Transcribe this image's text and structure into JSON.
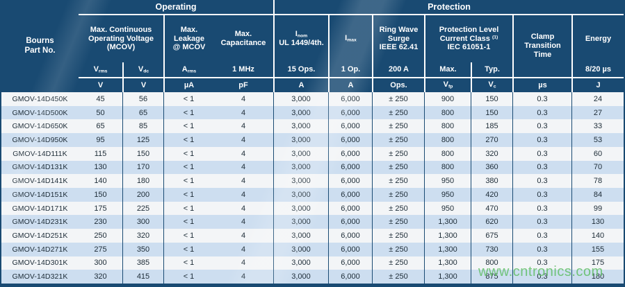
{
  "colors": {
    "header_bg": "#194a72",
    "row_stripe": "#cddef0",
    "row_plain": "#f3f5f7",
    "data_text": "#1c2b36",
    "watermark_green": "#60be66"
  },
  "header": {
    "part": {
      "l1": "Bourns",
      "l2": "Part No."
    },
    "sections": {
      "operating": "Operating",
      "protection": "Protection"
    },
    "groups": {
      "mcov": {
        "l1": "Max. Continuous",
        "l2": "Operating Voltage",
        "l3": "(MCOV)"
      },
      "leakage": {
        "l1": "Max.",
        "l2": "Leakage",
        "l3": "@ MCOV"
      },
      "capacitance": {
        "l1": "Max.",
        "l2": "Capacitance"
      },
      "inom": {
        "base": "I",
        "sub": "nom",
        "l2": "UL 1449/4th."
      },
      "imax": {
        "base": "I",
        "sub": "max"
      },
      "ringwave": {
        "l1": "Ring Wave",
        "l2": "Surge",
        "l3": "IEEE 62.41"
      },
      "protlevel": {
        "l1": "Protection Level",
        "l2": "Current Class",
        "sup": "(1)",
        "l3": "IEC 61051-1"
      },
      "clamp": {
        "l1": "Clamp",
        "l2": "Transition",
        "l3": "Time"
      },
      "energy": {
        "l1": "Energy"
      }
    },
    "sublabels": {
      "vrms": {
        "base": "V",
        "sub": "rms"
      },
      "vdc": {
        "base": "V",
        "sub": "dc"
      },
      "arms": {
        "base": "A",
        "sub": "rms"
      },
      "mhz": "1 MHz",
      "ops15": "15 Ops.",
      "op1": "1 Op.",
      "a200": "200 A",
      "max": "Max.",
      "typ": "Typ.",
      "e820": "8/20 µs"
    },
    "units": {
      "vrms": "V",
      "vdc": "V",
      "arms": "µA",
      "cap": "pF",
      "inom": "A",
      "imax": "A",
      "ring": "Ops.",
      "vfp": {
        "base": "V",
        "sub": "fp"
      },
      "vc": {
        "base": "V",
        "sub": "c"
      },
      "clamp": "µs",
      "energy": "J"
    }
  },
  "rows": [
    [
      "GMOV-14D450K",
      "45",
      "56",
      "< 1",
      "4",
      "3,000",
      "6,000",
      "± 250",
      "900",
      "150",
      "0.3",
      "24"
    ],
    [
      "GMOV-14D500K",
      "50",
      "65",
      "< 1",
      "4",
      "3,000",
      "6,000",
      "± 250",
      "800",
      "150",
      "0.3",
      "27"
    ],
    [
      "GMOV-14D650K",
      "65",
      "85",
      "< 1",
      "4",
      "3,000",
      "6,000",
      "± 250",
      "800",
      "185",
      "0.3",
      "33"
    ],
    [
      "GMOV-14D950K",
      "95",
      "125",
      "< 1",
      "4",
      "3,000",
      "6,000",
      "± 250",
      "800",
      "270",
      "0.3",
      "53"
    ],
    [
      "GMOV-14D111K",
      "115",
      "150",
      "< 1",
      "4",
      "3,000",
      "6,000",
      "± 250",
      "800",
      "320",
      "0.3",
      "60"
    ],
    [
      "GMOV-14D131K",
      "130",
      "170",
      "< 1",
      "4",
      "3,000",
      "6,000",
      "± 250",
      "800",
      "360",
      "0.3",
      "70"
    ],
    [
      "GMOV-14D141K",
      "140",
      "180",
      "< 1",
      "4",
      "3,000",
      "6,000",
      "± 250",
      "950",
      "380",
      "0.3",
      "78"
    ],
    [
      "GMOV-14D151K",
      "150",
      "200",
      "< 1",
      "4",
      "3,000",
      "6,000",
      "± 250",
      "950",
      "420",
      "0.3",
      "84"
    ],
    [
      "GMOV-14D171K",
      "175",
      "225",
      "< 1",
      "4",
      "3,000",
      "6,000",
      "± 250",
      "950",
      "470",
      "0.3",
      "99"
    ],
    [
      "GMOV-14D231K",
      "230",
      "300",
      "< 1",
      "4",
      "3,000",
      "6,000",
      "± 250",
      "1,300",
      "620",
      "0.3",
      "130"
    ],
    [
      "GMOV-14D251K",
      "250",
      "320",
      "< 1",
      "4",
      "3,000",
      "6,000",
      "± 250",
      "1,300",
      "675",
      "0.3",
      "140"
    ],
    [
      "GMOV-14D271K",
      "275",
      "350",
      "< 1",
      "4",
      "3,000",
      "6,000",
      "± 250",
      "1,300",
      "730",
      "0.3",
      "155"
    ],
    [
      "GMOV-14D301K",
      "300",
      "385",
      "< 1",
      "4",
      "3,000",
      "6,000",
      "± 250",
      "1,300",
      "800",
      "0.3",
      "175"
    ],
    [
      "GMOV-14D321K",
      "320",
      "415",
      "< 1",
      "4",
      "3,000",
      "6,000",
      "± 250",
      "1,300",
      "875",
      "0.3",
      "180"
    ]
  ],
  "watermark": "www.cntronics.com"
}
